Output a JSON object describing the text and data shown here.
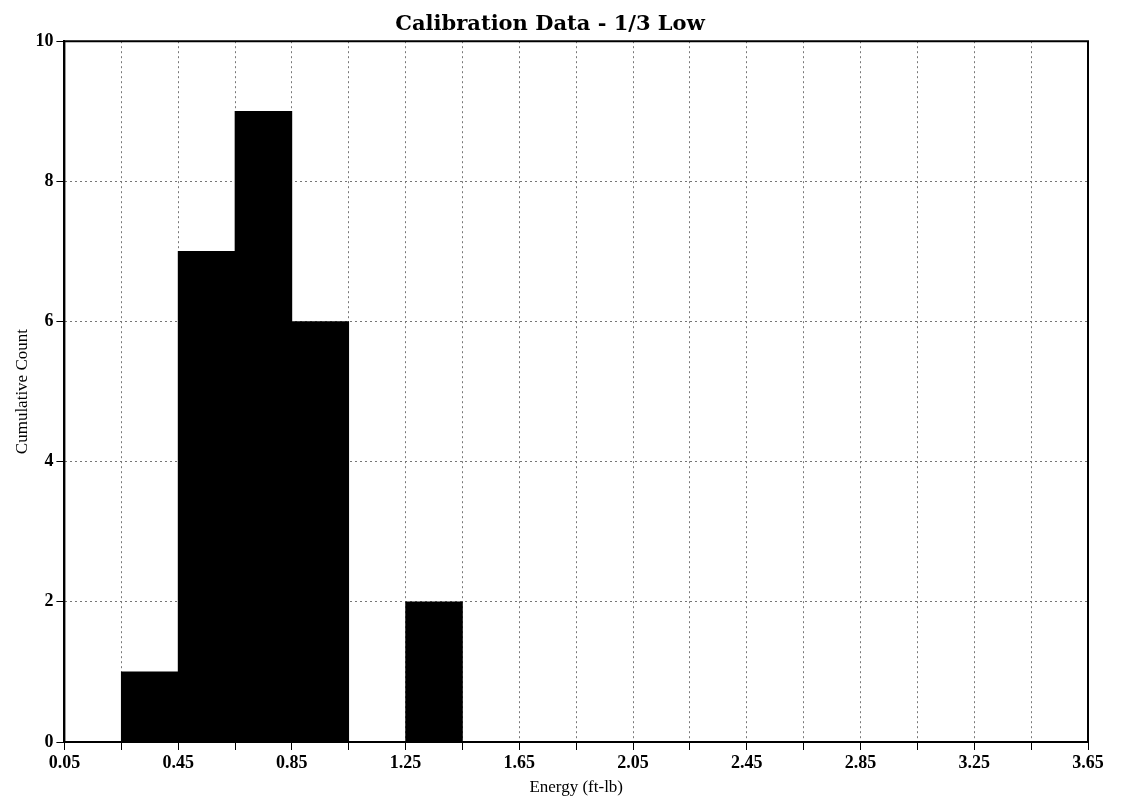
{
  "chart_data": {
    "type": "histogram",
    "title": "Calibration Data - 1/3 Low",
    "xlabel": "Energy (ft-lb)",
    "ylabel": "Cumulative Count",
    "bins": [
      0.25,
      0.45,
      0.65,
      0.85,
      1.05,
      1.25,
      1.45
    ],
    "values": [
      1,
      7,
      9,
      6,
      0,
      2
    ],
    "color": "#000000",
    "xlim": [
      0.05,
      3.65
    ],
    "xticks": [
      0.05,
      {
        "value": 0.25,
        "label": null
      },
      0.45,
      {
        "value": 0.65,
        "label": null
      },
      0.85,
      {
        "value": 1.05,
        "label": null
      },
      1.25,
      {
        "value": 1.45,
        "label": null
      },
      1.65,
      {
        "value": 1.85,
        "label": null
      },
      2.05,
      {
        "value": 2.25,
        "label": null
      },
      2.45,
      {
        "value": 2.65,
        "label": null
      },
      2.85,
      {
        "value": 3.05,
        "label": null
      },
      3.25,
      {
        "value": 3.45,
        "label": null
      },
      3.65
    ],
    "ylim": [
      0,
      10
    ],
    "yticks": [
      0,
      2,
      4,
      6,
      8,
      10
    ],
    "grid": true,
    "legend": false
  }
}
